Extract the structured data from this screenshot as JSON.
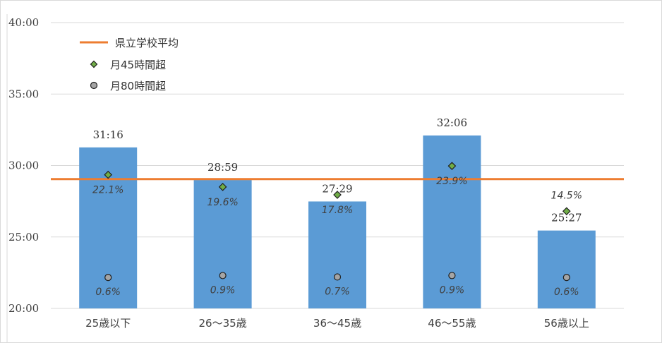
{
  "chart_data": {
    "type": "bar",
    "categories": [
      "25歳以下",
      "26～35歳",
      "36～45歳",
      "46～55歳",
      "56歳以上"
    ],
    "y_ticks": [
      "20:00",
      "25:00",
      "30:00",
      "35:00",
      "40:00"
    ],
    "ylim_minutes": [
      1200,
      2400
    ],
    "grid": true,
    "legend_position": "top-left",
    "bars": {
      "values_minutes": [
        1876,
        1739,
        1649,
        1926,
        1527
      ],
      "labels": [
        "31:16",
        "28:59",
        "27:29",
        "32:06",
        "25:27"
      ],
      "color": "#5b9bd5"
    },
    "reference_line": {
      "name": "県立学校平均",
      "value_minutes": 1743,
      "color": "#ed7d31"
    },
    "series": [
      {
        "name": "月45時間超",
        "values_percent": [
          22.1,
          19.6,
          17.8,
          23.9,
          14.5
        ],
        "labels": [
          "22.1%",
          "19.6%",
          "17.8%",
          "23.9%",
          "14.5%"
        ],
        "marker_y_minutes": [
          1761,
          1710,
          1677,
          1798,
          1608
        ],
        "color": "#70ad47"
      },
      {
        "name": "月80時間超",
        "values_percent": [
          0.6,
          0.9,
          0.7,
          0.9,
          0.6
        ],
        "labels": [
          "0.6%",
          "0.9%",
          "0.7%",
          "0.9%",
          "0.6%"
        ],
        "marker_y_minutes": [
          1330,
          1338,
          1332,
          1338,
          1330
        ],
        "color": "#a5a5a5"
      }
    ]
  }
}
